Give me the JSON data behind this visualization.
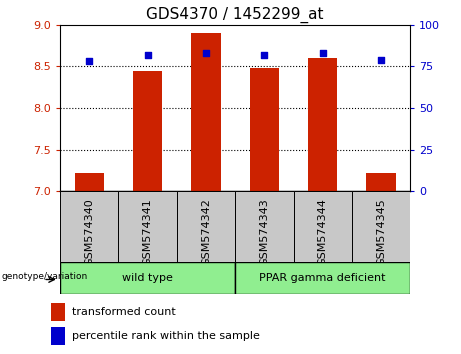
{
  "title": "GDS4370 / 1452299_at",
  "samples": [
    "GSM574340",
    "GSM574341",
    "GSM574342",
    "GSM574343",
    "GSM574344",
    "GSM574345"
  ],
  "bar_values": [
    7.22,
    8.45,
    8.9,
    8.48,
    8.6,
    7.22
  ],
  "bar_bottom": 7.0,
  "percentile_values": [
    78,
    82,
    83,
    82,
    83,
    79
  ],
  "ylim_left": [
    7,
    9
  ],
  "ylim_right": [
    0,
    100
  ],
  "yticks_left": [
    7,
    7.5,
    8,
    8.5,
    9
  ],
  "yticks_right": [
    0,
    25,
    50,
    75,
    100
  ],
  "dotted_lines": [
    7.5,
    8.0,
    8.5
  ],
  "bar_color": "#cc2200",
  "point_color": "#0000cc",
  "group_labels": [
    "wild type",
    "PPAR gamma deficient"
  ],
  "group_colors": [
    "#90ee90",
    "#90ee90"
  ],
  "sample_box_color": "#c8c8c8",
  "genotype_label": "genotype/variation",
  "legend_bar_label": "transformed count",
  "legend_point_label": "percentile rank within the sample",
  "title_fontsize": 11,
  "tick_fontsize": 8,
  "label_fontsize": 8,
  "figsize": [
    4.61,
    3.54
  ],
  "dpi": 100
}
